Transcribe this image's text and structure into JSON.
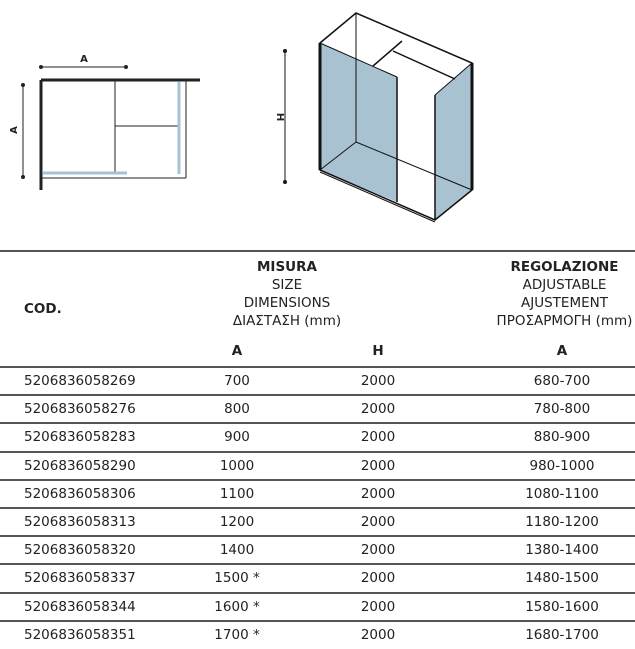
{
  "drawings": {
    "plan_view": {
      "width_label": "A",
      "depth_label": "A"
    },
    "perspective_view": {
      "height_label": "H"
    },
    "glass_color": "#a9c2d1"
  },
  "table": {
    "code_header": "COD.",
    "size_header": [
      "MISURA",
      "SIZE",
      "DIMENSIONS",
      "ΔΙΑΣΤΑΣΗ (mm)"
    ],
    "adjust_header": [
      "REGOLAZIONE",
      "ADJUSTABLE",
      "AJUSTEMENT",
      "ΠΡΟΣΑΡΜΟΓΗ (mm)"
    ],
    "sub_headers": {
      "size_a": "A",
      "size_h": "H",
      "adjust_a": "A"
    },
    "rows": [
      {
        "code": "5206836058269",
        "a": "700",
        "h": "2000",
        "adjust": "680-700"
      },
      {
        "code": "5206836058276",
        "a": "800",
        "h": "2000",
        "adjust": "780-800"
      },
      {
        "code": "5206836058283",
        "a": "900",
        "h": "2000",
        "adjust": "880-900"
      },
      {
        "code": "5206836058290",
        "a": "1000",
        "h": "2000",
        "adjust": "980-1000"
      },
      {
        "code": "5206836058306",
        "a": "1100",
        "h": "2000",
        "adjust": "1080-1100"
      },
      {
        "code": "5206836058313",
        "a": "1200",
        "h": "2000",
        "adjust": "1180-1200"
      },
      {
        "code": "5206836058320",
        "a": "1400",
        "h": "2000",
        "adjust": "1380-1400"
      },
      {
        "code": "5206836058337",
        "a": "1500 *",
        "h": "2000",
        "adjust": "1480-1500"
      },
      {
        "code": "5206836058344",
        "a": "1600 *",
        "h": "2000",
        "adjust": "1580-1600"
      },
      {
        "code": "5206836058351",
        "a": "1700 *",
        "h": "2000",
        "adjust": "1680-1700"
      }
    ]
  }
}
